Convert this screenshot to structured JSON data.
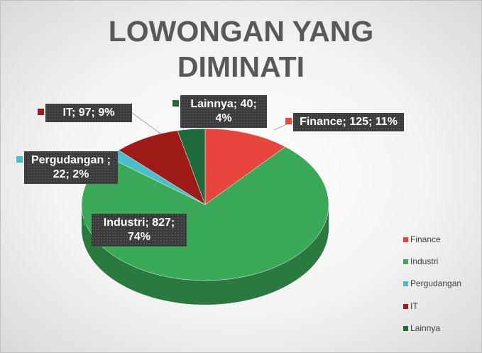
{
  "chart_data": {
    "type": "pie",
    "title": "LOWONGAN YANG DIMINATI",
    "categories": [
      "Finance",
      "Industri",
      "Pergudangan",
      "IT",
      "Lainnya"
    ],
    "values": [
      125,
      827,
      22,
      97,
      40
    ],
    "value_labels": [
      "Finance; 125; 11%",
      "Industri; 827; 74%",
      "Pergudangan ; 22; 2%",
      "IT; 97; 9%",
      "Lainnya; 40; 4%"
    ],
    "colors": [
      "#e8453c",
      "#3aa957",
      "#49bfcb",
      "#9e1b17",
      "#1f6a3b"
    ],
    "legend": "right"
  }
}
